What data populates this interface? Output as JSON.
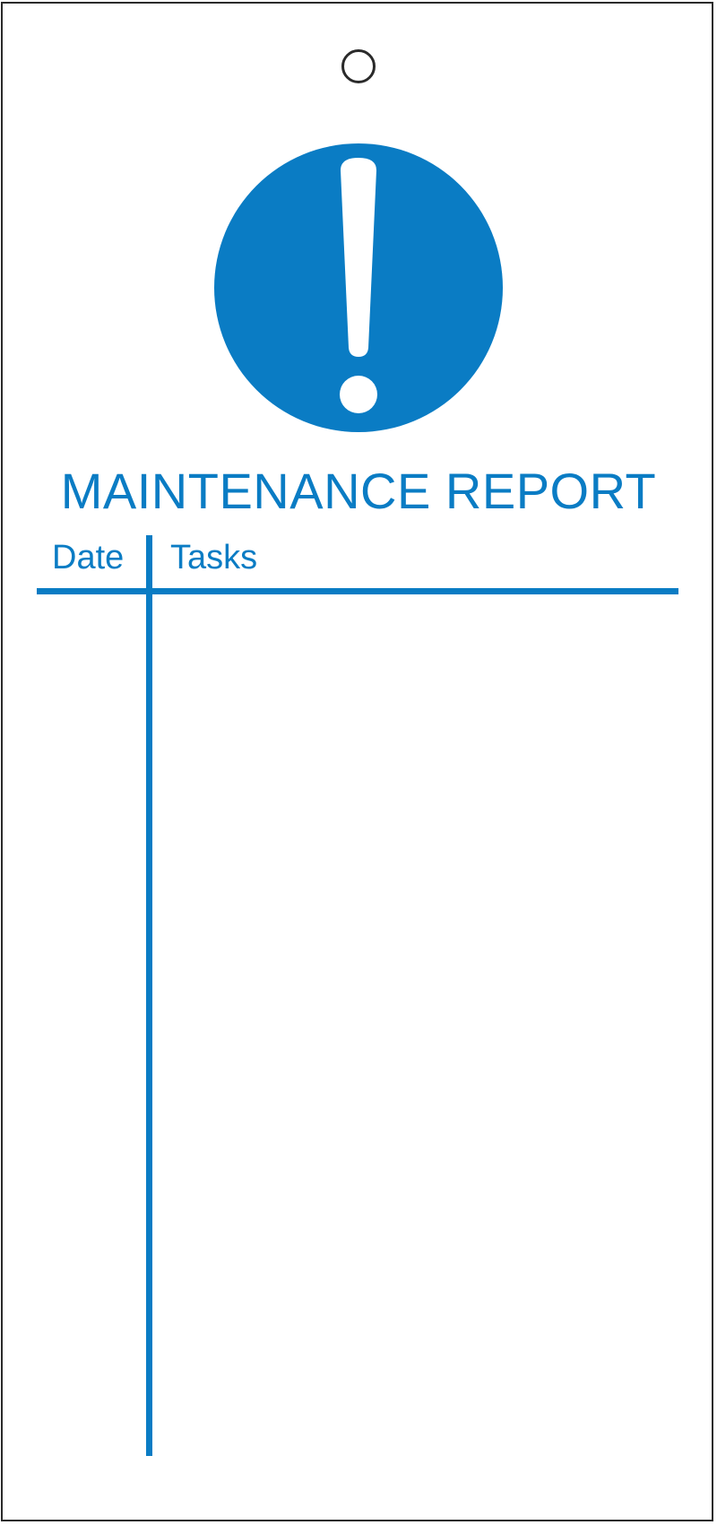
{
  "tag": {
    "title": "MAINTENANCE REPORT",
    "columns": {
      "date": "Date",
      "tasks": "Tasks"
    },
    "sign": {
      "icon": "exclamation-mandatory-icon",
      "color": "#0a7cc4"
    },
    "text_color": "#0a7cc4",
    "border_color": "#2a2a2a"
  }
}
